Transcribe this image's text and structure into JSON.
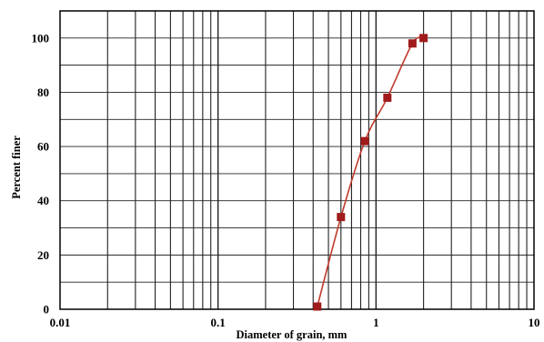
{
  "chart_data": {
    "type": "scatter",
    "xlabel": "Diameter of grain, mm",
    "ylabel": "Percent finer",
    "x_scale": "log",
    "xlim": [
      0.01,
      10
    ],
    "ylim": [
      0,
      110
    ],
    "x_ticks": [
      "0.01",
      "0.1",
      "1",
      "10"
    ],
    "y_ticks": [
      "0",
      "20",
      "40",
      "60",
      "80",
      "100"
    ],
    "grid": true,
    "line_color": "#c0392b",
    "marker_color": "#a01b1b",
    "series": [
      {
        "x": [
          0.425,
          0.6,
          0.85,
          1.18,
          1.7,
          2.0
        ],
        "y": [
          1,
          34,
          62,
          78,
          98,
          100
        ]
      }
    ]
  }
}
